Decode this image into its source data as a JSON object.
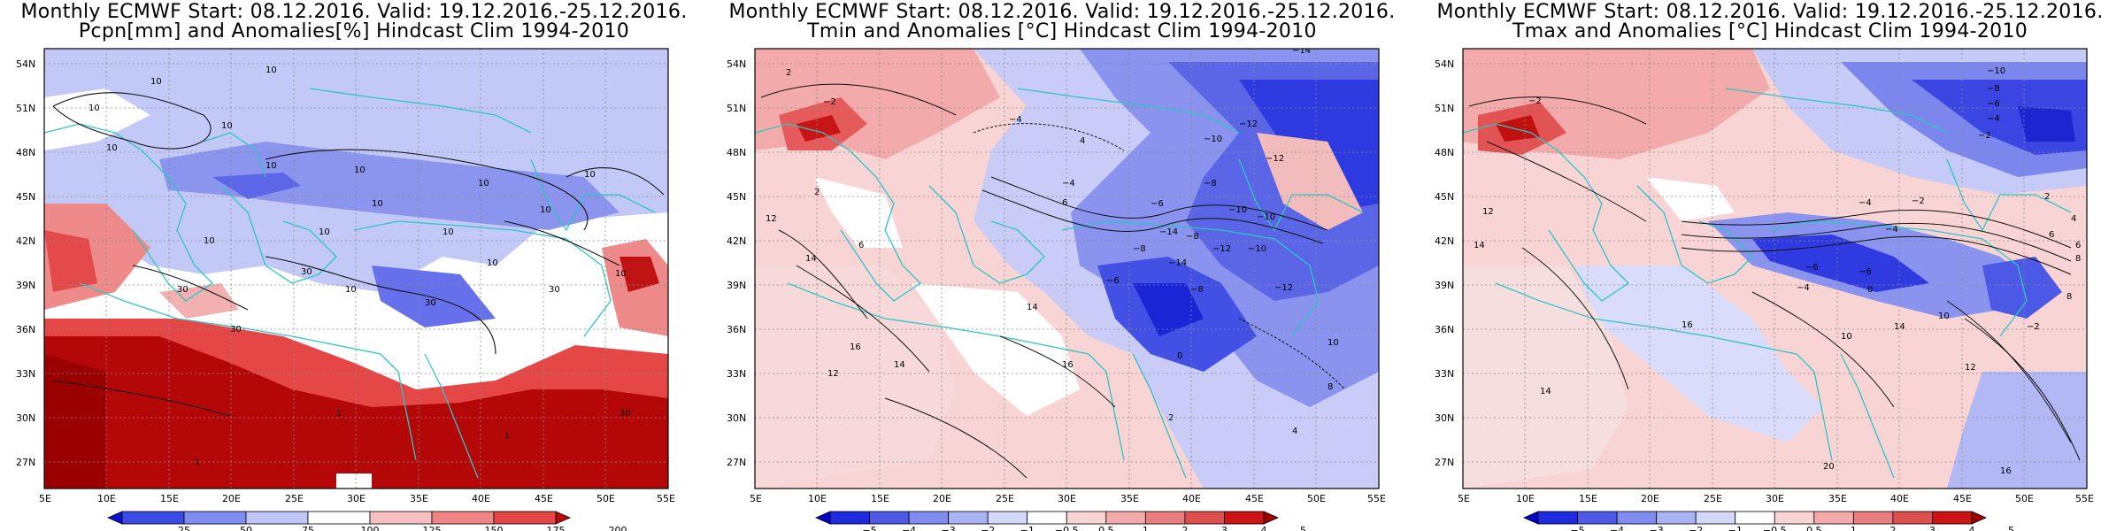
{
  "panels": [
    {
      "title_line1": "Monthly ECMWF Start: 08.12.2016. Valid: 19.12.2016.-25.12.2016.",
      "title_line2": "Pcpn[mm] and Anomalies[%] Hindcast Clim 1994-2010",
      "colorbar_labels": [
        "25",
        "50",
        "75",
        "100",
        "125",
        "150",
        "175",
        "200"
      ],
      "colorbar_colors": [
        "#0b12d6",
        "#3c4ae6",
        "#7f8cf0",
        "#bfc6f6",
        "#ffffff",
        "#f6c0c0",
        "#ef8484",
        "#e54646",
        "#b80a0a"
      ],
      "contour_labels": [
        "10",
        "10",
        "10",
        "10",
        "10",
        "10",
        "10",
        "10",
        "10",
        "10",
        "10",
        "10",
        "10",
        "10",
        "10",
        "30",
        "30",
        "30",
        "30",
        "30",
        "30",
        "1",
        "1",
        "1",
        "10",
        "10"
      ]
    },
    {
      "title_line1": "Monthly ECMWF Start: 08.12.2016. Valid: 19.12.2016.-25.12.2016.",
      "title_line2": "Tmin and Anomalies [°C] Hindcast Clim 1994-2010",
      "colorbar_labels": [
        "−5",
        "−4",
        "−3",
        "−2",
        "−1",
        "−0.5",
        "0.5",
        "1",
        "2",
        "3",
        "4",
        "5"
      ],
      "colorbar_colors": [
        "#0000cc",
        "#1e2ae0",
        "#4d5ae8",
        "#7f8cf0",
        "#a9b3f4",
        "#d3d8fa",
        "#ffffff",
        "#f9d4d4",
        "#f2aaaa",
        "#e97e7e",
        "#df4f4f",
        "#cc1414",
        "#a00000"
      ],
      "contour_labels": [
        "−14",
        "−2",
        "−4",
        "−12",
        "−10",
        "−12",
        "−8",
        "−4",
        "−10",
        "−14",
        "−8",
        "−12",
        "−10",
        "−6",
        "−8",
        "−10",
        "−14",
        "−8",
        "−12",
        "−6",
        "2",
        "6",
        "12",
        "14",
        "16",
        "14",
        "12",
        "14",
        "16",
        "10",
        "6",
        "8",
        "4",
        "2",
        "0",
        "4",
        "2"
      ]
    },
    {
      "title_line1": "Monthly ECMWF Start: 08.12.2016. Valid: 19.12.2016.-25.12.2016.",
      "title_line2": "Tmax and Anomalies [°C] Hindcast Clim 1994-2010",
      "colorbar_labels": [
        "−5",
        "−4",
        "−3",
        "−2",
        "−1",
        "−0.5",
        "0.5",
        "1",
        "2",
        "3",
        "4",
        "5"
      ],
      "colorbar_colors": [
        "#0000cc",
        "#1e2ae0",
        "#4d5ae8",
        "#7f8cf0",
        "#a9b3f4",
        "#d3d8fa",
        "#ffffff",
        "#f9d4d4",
        "#f2aaaa",
        "#e97e7e",
        "#df4f4f",
        "#cc1414",
        "#a00000"
      ],
      "contour_labels": [
        "−10",
        "−8",
        "−6",
        "−4",
        "−2",
        "−2",
        "−4",
        "−6",
        "−4",
        "−6",
        "−2",
        "−4",
        "−2",
        "0",
        "2",
        "4",
        "6",
        "8",
        "10",
        "12",
        "14",
        "16",
        "14",
        "10",
        "12",
        "14",
        "16",
        "20",
        "8",
        "6"
      ]
    }
  ],
  "map": {
    "lat_labels": [
      "54N",
      "51N",
      "48N",
      "45N",
      "42N",
      "39N",
      "36N",
      "33N",
      "30N",
      "27N"
    ],
    "lon_labels": [
      "5E",
      "10E",
      "15E",
      "20E",
      "25E",
      "30E",
      "35E",
      "40E",
      "45E",
      "50E",
      "55E"
    ],
    "colors": {
      "coast": "#2ec5c5",
      "grid": "#8a8a8a",
      "contour": "#111111"
    }
  }
}
